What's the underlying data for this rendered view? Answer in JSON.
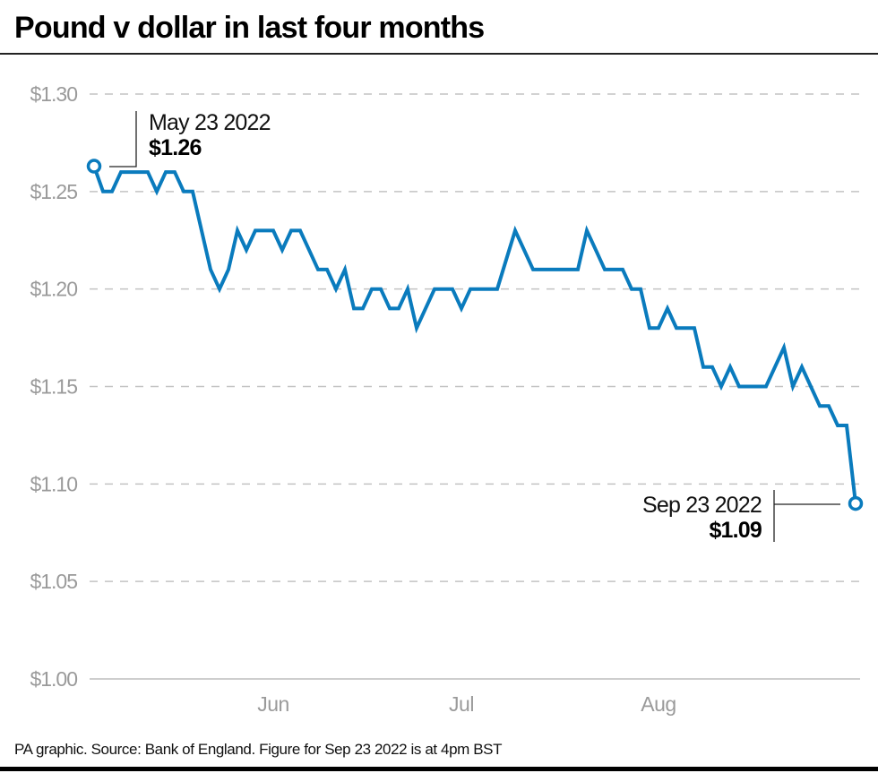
{
  "chart_data": {
    "type": "line",
    "title": "Pound v dollar in last four months",
    "xlabel": "",
    "ylabel": "",
    "ylim": [
      1.0,
      1.3
    ],
    "y_ticks": [
      "$1.30",
      "$1.25",
      "$1.20",
      "$1.15",
      "$1.10",
      "$1.05",
      "$1.00"
    ],
    "y_tick_values": [
      1.3,
      1.25,
      1.2,
      1.15,
      1.1,
      1.05,
      1.0
    ],
    "x_ticks": [
      "Jun",
      "Jul",
      "Aug"
    ],
    "x_range": [
      "May 23 2022",
      "Sep 23 2022"
    ],
    "grid": "horizontal dashed",
    "line_color": "#0a7bbd",
    "values": [
      1.263,
      1.25,
      1.25,
      1.26,
      1.26,
      1.26,
      1.26,
      1.25,
      1.26,
      1.26,
      1.25,
      1.25,
      1.23,
      1.21,
      1.2,
      1.21,
      1.23,
      1.22,
      1.23,
      1.23,
      1.23,
      1.22,
      1.23,
      1.23,
      1.22,
      1.21,
      1.21,
      1.2,
      1.21,
      1.19,
      1.19,
      1.2,
      1.2,
      1.19,
      1.19,
      1.2,
      1.18,
      1.19,
      1.2,
      1.2,
      1.2,
      1.19,
      1.2,
      1.2,
      1.2,
      1.2,
      1.215,
      1.23,
      1.22,
      1.21,
      1.21,
      1.21,
      1.21,
      1.21,
      1.21,
      1.23,
      1.22,
      1.21,
      1.21,
      1.21,
      1.2,
      1.2,
      1.18,
      1.18,
      1.19,
      1.18,
      1.18,
      1.18,
      1.16,
      1.16,
      1.15,
      1.16,
      1.15,
      1.15,
      1.15,
      1.15,
      1.16,
      1.17,
      1.15,
      1.16,
      1.15,
      1.14,
      1.14,
      1.13,
      1.13,
      1.09
    ],
    "annotations": [
      {
        "date": "May 23 2022",
        "value": "$1.26"
      },
      {
        "date": "Sep 23 2022",
        "value": "$1.09"
      }
    ]
  },
  "source": "PA graphic. Source: Bank of England. Figure for Sep 23 2022 is at 4pm BST"
}
